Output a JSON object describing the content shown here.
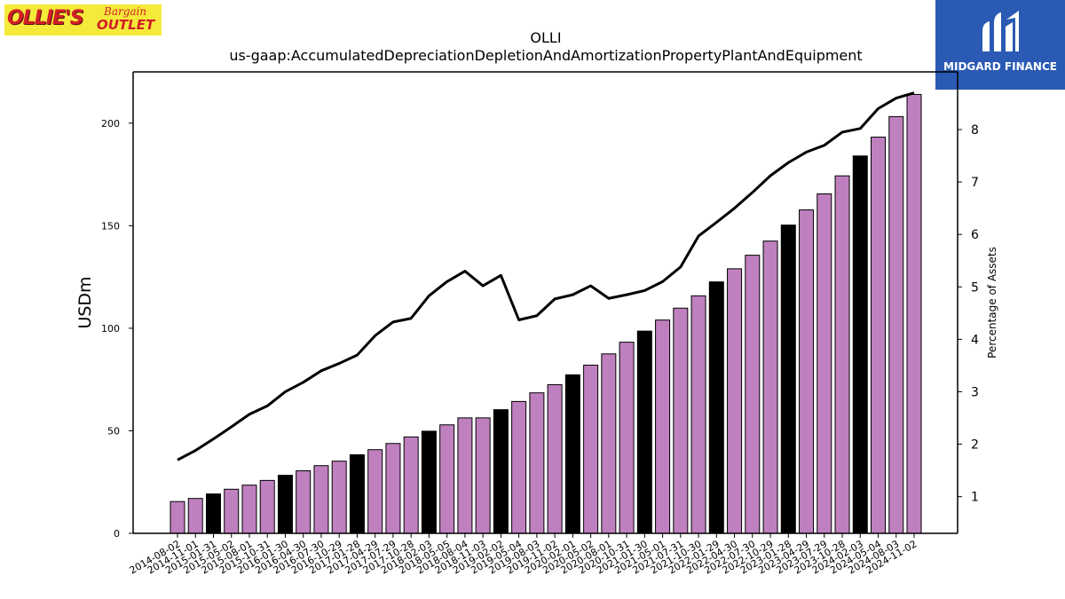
{
  "logos": {
    "left": {
      "icon": "ollies-bargain-outlet-logo",
      "text_main": "OLLIE'S",
      "text_sub1": "Bargain",
      "text_sub2": "OUTLET"
    },
    "right": {
      "icon": "midgard-finance-logo",
      "text": "MIDGARD FINANCE",
      "background": "#2a5ab3"
    }
  },
  "colors": {
    "bar_regular": "#bf80bf",
    "bar_highlight": "#000000",
    "line": "#000000"
  },
  "chart_data": {
    "type": "bar",
    "title": "OLLI",
    "subtitle": "us-gaap:AccumulatedDepreciationDepletionAndAmortizationPropertyPlantAndEquipment",
    "ylabel": "USDm",
    "y2label": "Percentage of Assets",
    "ylim": [
      0,
      225
    ],
    "y2lim": [
      0.3,
      9.1
    ],
    "yticks": [
      0,
      50,
      100,
      150,
      200
    ],
    "y2ticks": [
      1,
      2,
      3,
      4,
      5,
      6,
      7,
      8
    ],
    "grid": false,
    "categories": [
      "2014-08-02",
      "2014-11-01",
      "2015-01-31",
      "2015-05-02",
      "2015-08-01",
      "2015-10-31",
      "2016-01-30",
      "2016-04-30",
      "2016-07-30",
      "2016-10-29",
      "2017-01-28",
      "2017-04-29",
      "2017-07-29",
      "2017-10-28",
      "2018-02-03",
      "2018-05-05",
      "2018-08-04",
      "2018-11-03",
      "2019-02-02",
      "2019-05-04",
      "2019-08-03",
      "2019-11-02",
      "2020-02-01",
      "2020-05-02",
      "2020-08-01",
      "2020-10-31",
      "2021-01-30",
      "2021-05-01",
      "2021-07-31",
      "2021-10-30",
      "2022-01-29",
      "2022-04-30",
      "2022-07-30",
      "2022-10-29",
      "2023-01-28",
      "2023-04-29",
      "2023-07-29",
      "2023-10-28",
      "2024-02-03",
      "2024-05-04",
      "2024-08-03",
      "2024-11-02"
    ],
    "series": [
      {
        "type": "bar",
        "values": [
          15.5,
          17.0,
          19.2,
          21.5,
          23.5,
          25.8,
          28.3,
          30.5,
          33.0,
          35.2,
          38.3,
          40.8,
          43.8,
          47.0,
          49.8,
          52.9,
          56.3,
          56.3,
          60.3,
          64.3,
          68.5,
          72.5,
          77.3,
          82.0,
          87.5,
          93.2,
          98.6,
          104.0,
          109.8,
          115.8,
          122.6,
          129.0,
          135.6,
          142.5,
          150.3,
          157.7,
          165.5,
          174.3,
          184.0,
          193.2,
          203.2,
          214.0
        ],
        "highlight": [
          false,
          false,
          true,
          false,
          false,
          false,
          true,
          false,
          false,
          false,
          true,
          false,
          false,
          false,
          true,
          false,
          false,
          false,
          true,
          false,
          false,
          false,
          true,
          false,
          false,
          false,
          true,
          false,
          false,
          false,
          true,
          false,
          false,
          false,
          true,
          false,
          false,
          false,
          true,
          false,
          false,
          false
        ]
      },
      {
        "type": "line",
        "axis": "right",
        "values": [
          1.7,
          1.88,
          2.1,
          2.33,
          2.57,
          2.73,
          3.0,
          3.18,
          3.4,
          3.54,
          3.7,
          4.07,
          4.33,
          4.4,
          4.83,
          5.1,
          5.3,
          5.02,
          5.22,
          4.37,
          4.45,
          4.77,
          4.85,
          5.02,
          4.78,
          4.85,
          4.93,
          5.1,
          5.38,
          5.97,
          6.23,
          6.5,
          6.8,
          7.12,
          7.37,
          7.57,
          7.7,
          7.95,
          8.02,
          8.4,
          8.6,
          8.7
        ]
      }
    ]
  }
}
